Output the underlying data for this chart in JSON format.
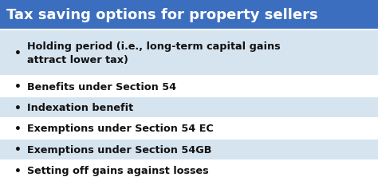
{
  "title": "Tax saving options for property sellers",
  "title_bg_color": "#3B6EBF",
  "title_text_color": "#FFFFFF",
  "row_colors": [
    "#D6E4F0",
    "#FFFFFF",
    "#D6E4F0",
    "#FFFFFF",
    "#D6E4F0",
    "#FFFFFF"
  ],
  "bullet_items": [
    "Holding period (i.e., long-term capital gains\nattract lower tax)",
    "Benefits under Section 54",
    "Indexation benefit",
    "Exemptions under Section 54 EC",
    "Exemptions under Section 54GB",
    "Setting off gains against losses"
  ],
  "text_color": "#111111",
  "figsize": [
    4.74,
    2.28
  ],
  "dpi": 100,
  "title_fontsize": 13.0,
  "body_fontsize": 9.2,
  "bullet_fontsize": 10.0
}
